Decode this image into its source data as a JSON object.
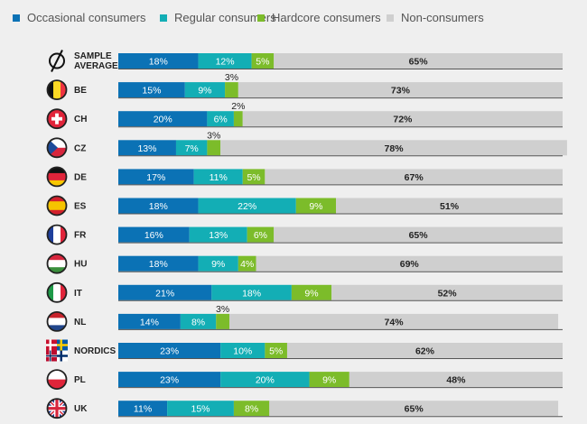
{
  "chart_data": {
    "type": "bar",
    "orientation": "horizontal",
    "stacked": true,
    "unit": "%",
    "xlim": [
      0,
      100
    ],
    "legend_position": "top",
    "grid": false,
    "categories": [
      "SAMPLE AVERAGE",
      "BE",
      "CH",
      "CZ",
      "DE",
      "ES",
      "FR",
      "HU",
      "IT",
      "NL",
      "NORDICS",
      "PL",
      "UK"
    ],
    "series": [
      {
        "name": "Occasional consumers",
        "color": "#0b72b5",
        "values": [
          18,
          15,
          20,
          13,
          17,
          18,
          16,
          18,
          21,
          14,
          23,
          23,
          11
        ]
      },
      {
        "name": "Regular consumers",
        "color": "#13aeb5",
        "values": [
          12,
          9,
          6,
          7,
          11,
          22,
          13,
          9,
          18,
          8,
          10,
          20,
          15
        ]
      },
      {
        "name": "Hardcore consumers",
        "color": "#7cbc2a",
        "values": [
          5,
          3,
          2,
          3,
          5,
          9,
          6,
          4,
          9,
          3,
          5,
          9,
          8
        ]
      },
      {
        "name": "Non-consumers",
        "color": "#cfcfcf",
        "values": [
          65,
          73,
          72,
          78,
          67,
          51,
          65,
          69,
          52,
          74,
          62,
          48,
          65
        ]
      }
    ],
    "row_icons": [
      "empty-set-symbol",
      "belgium-flag",
      "switzerland-flag",
      "czech-flag",
      "germany-flag",
      "spain-flag",
      "france-flag",
      "hungary-flag",
      "italy-flag",
      "netherlands-flag",
      "nordics-flags",
      "poland-flag",
      "uk-flag"
    ]
  }
}
